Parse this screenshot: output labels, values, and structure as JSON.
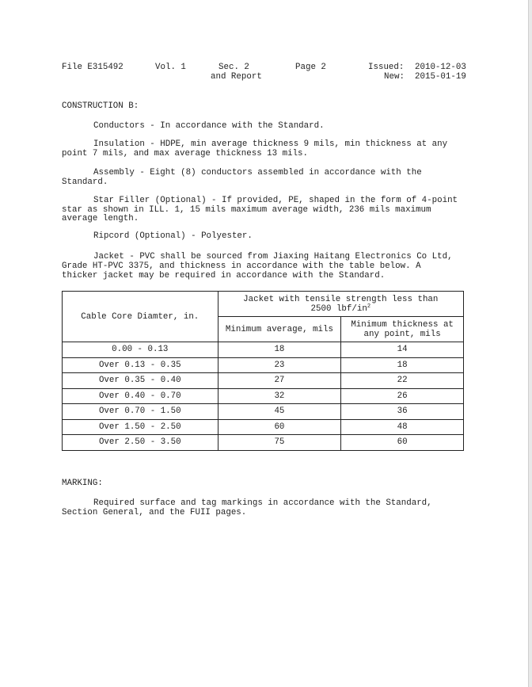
{
  "header": {
    "file": "File E315492",
    "vol": "Vol. 1",
    "sec": "Sec. 2",
    "sec_sub": "and Report",
    "page": "Page 2",
    "issued_label": "Issued:",
    "issued": "2010-12-03",
    "new_label": "New:",
    "new": "2015-01-19"
  },
  "construction": {
    "heading": "CONSTRUCTION B:",
    "lines": [
      "Conductors - In accordance with the Standard.",
      "Insulation - HDPE, min average thickness 9 mils, min thickness at any",
      "point 7 mils, and max average thickness 13 mils.",
      "Assembly - Eight (8) conductors assembled in accordance with the",
      "Standard.",
      "Star Filler (Optional) - If provided, PE, shaped in the form of 4-point",
      "star as shown in ILL. 1, 15 mils maximum average width, 236 mils maximum",
      "average length.",
      "Ripcord (Optional) - Polyester.",
      "Jacket - PVC shall be sourced from Jiaxing Haitang Electronics Co Ltd,",
      "Grade HT-PVC 3375, and thickness in accordance with the table below. A",
      "thicker jacket may be required in accordance with the Standard."
    ]
  },
  "table": {
    "col1": "Cable Core Diamter, in.",
    "group": "Jacket with tensile strength less than",
    "group2": "2500 lbf/in",
    "group2_sup": "2",
    "col2": "Minimum average, mils",
    "col3a": "Minimum thickness at",
    "col3b": "any point, mils",
    "rows": [
      [
        "0.00 - 0.13",
        "18",
        "14"
      ],
      [
        "Over 0.13 - 0.35",
        "23",
        "18"
      ],
      [
        "Over 0.35 - 0.40",
        "27",
        "22"
      ],
      [
        "Over 0.40 - 0.70",
        "32",
        "26"
      ],
      [
        "Over 0.70 - 1.50",
        "45",
        "36"
      ],
      [
        "Over 1.50 - 2.50",
        "60",
        "48"
      ],
      [
        "Over 2.50 - 3.50",
        "75",
        "60"
      ]
    ]
  },
  "marking": {
    "heading": "MARKING:",
    "lines": [
      "Required surface and tag markings in accordance with the Standard,",
      "Section General, and the FUII pages."
    ]
  }
}
